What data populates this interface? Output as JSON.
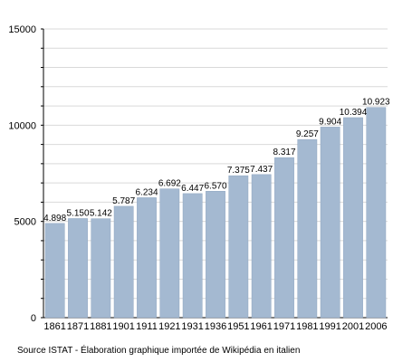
{
  "chart_data": {
    "type": "bar",
    "categories": [
      "1861",
      "1871",
      "1881",
      "1901",
      "1911",
      "1921",
      "1931",
      "1936",
      "1951",
      "1961",
      "1971",
      "1981",
      "1991",
      "2001",
      "2006"
    ],
    "values": [
      4898,
      5150,
      5142,
      5787,
      6234,
      6692,
      6447,
      6570,
      7375,
      7437,
      8317,
      9257,
      9904,
      10394,
      10923
    ],
    "value_labels": [
      "4.898",
      "5.150",
      "5.142",
      "5.787",
      "6.234",
      "6.692",
      "6.447",
      "6.570",
      "7.375",
      "7.437",
      "8.317",
      "9.257",
      "9.904",
      "10.394",
      "10.923"
    ],
    "y_ticks": [
      0,
      5000,
      10000,
      15000
    ],
    "y_tick_labels": [
      "0",
      "5000",
      "10000",
      "15000"
    ],
    "ylim": [
      0,
      15000
    ],
    "grid": true,
    "bar_color": "#a4b9d1",
    "bar_edge_color": "#8fa6c0"
  },
  "footer": {
    "source": "Source ISTAT - Élaboration graphique importée de Wikipédia en italien"
  }
}
